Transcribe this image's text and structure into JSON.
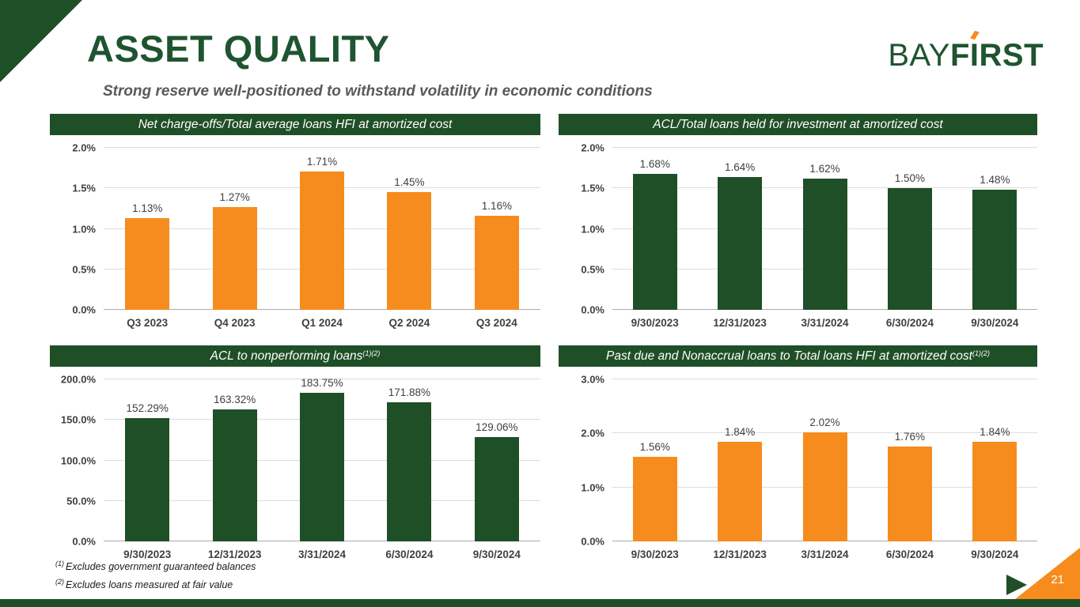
{
  "slide": {
    "title": "ASSET QUALITY",
    "subtitle": "Strong reserve well-positioned to withstand volatility in economic conditions",
    "page_number": "21",
    "logo": {
      "part_light": "BAY",
      "part_bold_f": "F",
      "part_bold_i": "I",
      "part_bold_rest": "RST"
    },
    "footnotes": [
      {
        "marker": "(1)",
        "text": "Excludes government guaranteed balances"
      },
      {
        "marker": "(2)",
        "text": "Excludes loans measured at fair value"
      }
    ],
    "colors": {
      "green": "#1F4F27",
      "orange": "#F68C1E",
      "title_green": "#1F5430",
      "subtitle_gray": "#595959",
      "axis_text": "#404040"
    }
  },
  "chart_data": [
    {
      "type": "bar",
      "title": "Net charge-offs/Total average loans HFI at amortized cost",
      "title_sup": "",
      "categories": [
        "Q3 2023",
        "Q4 2023",
        "Q1 2024",
        "Q2 2024",
        "Q3 2024"
      ],
      "values": [
        1.13,
        1.27,
        1.71,
        1.45,
        1.16
      ],
      "labels": [
        "1.13%",
        "1.27%",
        "1.71%",
        "1.45%",
        "1.16%"
      ],
      "bar_color": "#F68C1E",
      "ylim": [
        0,
        2.0
      ],
      "yticks": [
        "0.0%",
        "0.5%",
        "1.0%",
        "1.5%",
        "2.0%"
      ],
      "grid": true,
      "legend": "none"
    },
    {
      "type": "bar",
      "title": "ACL/Total loans held for investment at amortized cost",
      "title_sup": "",
      "categories": [
        "9/30/2023",
        "12/31/2023",
        "3/31/2024",
        "6/30/2024",
        "9/30/2024"
      ],
      "values": [
        1.68,
        1.64,
        1.62,
        1.5,
        1.48
      ],
      "labels": [
        "1.68%",
        "1.64%",
        "1.62%",
        "1.50%",
        "1.48%"
      ],
      "bar_color": "#1F4F27",
      "ylim": [
        0,
        2.0
      ],
      "yticks": [
        "0.0%",
        "0.5%",
        "1.0%",
        "1.5%",
        "2.0%"
      ],
      "grid": true,
      "legend": "none"
    },
    {
      "type": "bar",
      "title": "ACL to nonperforming loans",
      "title_sup": "(1)(2)",
      "categories": [
        "9/30/2023",
        "12/31/2023",
        "3/31/2024",
        "6/30/2024",
        "9/30/2024"
      ],
      "values": [
        152.29,
        163.32,
        183.75,
        171.88,
        129.06
      ],
      "labels": [
        "152.29%",
        "163.32%",
        "183.75%",
        "171.88%",
        "129.06%"
      ],
      "bar_color": "#1F4F27",
      "ylim": [
        0,
        200.0
      ],
      "yticks": [
        "0.0%",
        "50.0%",
        "100.0%",
        "150.0%",
        "200.0%"
      ],
      "grid": true,
      "legend": "none"
    },
    {
      "type": "bar",
      "title": "Past due and Nonaccrual loans to Total loans HFI at amortized cost",
      "title_sup": "(1)(2)",
      "categories": [
        "9/30/2023",
        "12/31/2023",
        "3/31/2024",
        "6/30/2024",
        "9/30/2024"
      ],
      "values": [
        1.56,
        1.84,
        2.02,
        1.76,
        1.84
      ],
      "labels": [
        "1.56%",
        "1.84%",
        "2.02%",
        "1.76%",
        "1.84%"
      ],
      "bar_color": "#F68C1E",
      "ylim": [
        0,
        3.0
      ],
      "yticks": [
        "0.0%",
        "1.0%",
        "2.0%",
        "3.0%"
      ],
      "grid": true,
      "legend": "none"
    }
  ]
}
